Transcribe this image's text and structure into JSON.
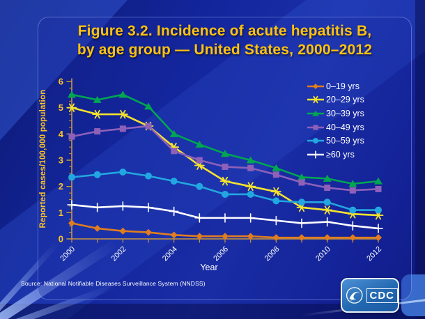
{
  "title": {
    "line1": "Figure 3.2. Incidence of acute hepatitis B,",
    "line2": "by age group — United States, 2000–2012"
  },
  "axes": {
    "y_label": "Reported cases/100,000 population",
    "x_label": "Year",
    "y_ticks": [
      0,
      1,
      2,
      3,
      4,
      5,
      6
    ],
    "x_tick_labels": [
      "2000",
      "2002",
      "2004",
      "2006",
      "2008",
      "2010",
      "2012"
    ]
  },
  "source": "Source: National Notifiable Diseases Surveillance System (NNDSS)",
  "logo": {
    "cdc": "CDC"
  },
  "colors": {
    "background": "#13249B",
    "title": "#FFC20E",
    "axis_line": "#C9973C",
    "y_tick_labels": "#FFC425",
    "x_tick_labels": "#FFFFFF",
    "legend_text": "#FFFFFF",
    "source_text": "#FFFFFF",
    "logo_blue": "#2268B0"
  },
  "chart_data": {
    "type": "line",
    "x": [
      2000,
      2001,
      2002,
      2003,
      2004,
      2005,
      2006,
      2007,
      2008,
      2009,
      2010,
      2011,
      2012
    ],
    "series": [
      {
        "name": "0–19 yrs",
        "marker": "diamond",
        "color": "#E07D1E",
        "values": [
          0.6,
          0.4,
          0.3,
          0.25,
          0.15,
          0.1,
          0.1,
          0.1,
          0.05,
          0.05,
          0.05,
          0.05,
          0.05
        ]
      },
      {
        "name": "20–29 yrs",
        "marker": "asterisk",
        "color": "#F5E32E",
        "values": [
          5.0,
          4.75,
          4.75,
          4.3,
          3.5,
          2.8,
          2.2,
          2.0,
          1.8,
          1.2,
          1.1,
          0.95,
          0.9
        ]
      },
      {
        "name": "30–39 yrs",
        "marker": "triangle",
        "color": "#00A651",
        "values": [
          5.5,
          5.3,
          5.5,
          5.05,
          4.0,
          3.6,
          3.25,
          3.0,
          2.7,
          2.35,
          2.3,
          2.1,
          2.2
        ]
      },
      {
        "name": "40–49 yrs",
        "marker": "square",
        "color": "#8E60B8",
        "values": [
          3.9,
          4.1,
          4.2,
          4.3,
          3.35,
          3.0,
          2.75,
          2.7,
          2.45,
          2.15,
          1.95,
          1.85,
          1.9
        ]
      },
      {
        "name": "50–59 yrs",
        "marker": "circle",
        "color": "#22A7E0",
        "values": [
          2.35,
          2.45,
          2.55,
          2.4,
          2.2,
          2.0,
          1.7,
          1.7,
          1.45,
          1.4,
          1.4,
          1.1,
          1.1
        ]
      },
      {
        "name": "≥60 yrs",
        "marker": "plus",
        "color": "#FFFFFF",
        "values": [
          1.3,
          1.2,
          1.25,
          1.2,
          1.05,
          0.8,
          0.8,
          0.8,
          0.7,
          0.6,
          0.65,
          0.5,
          0.4
        ]
      }
    ],
    "xlim": [
      2000,
      2012
    ],
    "ylim": [
      0,
      6
    ],
    "y_major_interval": 1,
    "y_minor_interval": 0.25,
    "x_tick_interval": 1,
    "x_label_interval": 2,
    "grid": false,
    "legend_position": "top-right"
  }
}
